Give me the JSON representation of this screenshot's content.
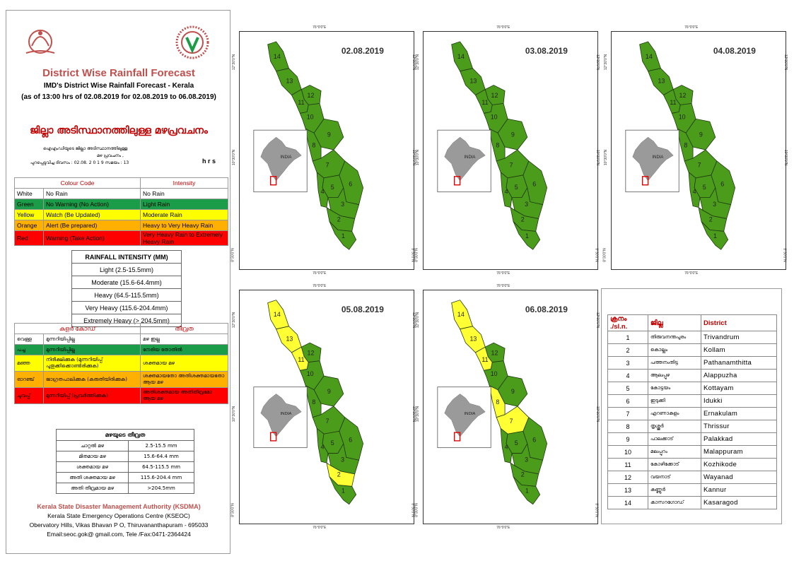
{
  "header": {
    "title": "District Wise Rainfall Forecast",
    "subtitle1": "IMD's District Wise Rainfall Forecast - Kerala",
    "subtitle2": "(as of 13:00 hrs of 02.08.2019  for 02.08.2019 to 06.08.2019)",
    "mal_title": "ജില്ലാ അടിസ്ഥാനത്തിലുള്ള മഴപ്രവചനം",
    "mal_line1": "ഐഎംഡിയുടെ        ജില്ലാ        അടിസ്ഥാനത്തിലുള്ള",
    "mal_line2": "മഴ പ്രവചനം       ,",
    "mal_line3": "പുറപ്പെടുവിച്ച        ദിവസം : 02.08.   2 0 1 9   സമയം : 13",
    "hrs": "h r s"
  },
  "colour_code": {
    "col1": "Colour Code",
    "col2": "Intensity",
    "rows": [
      {
        "color": "White",
        "meaning": "No Rain",
        "intensity": "No Rain",
        "cls": "r-white"
      },
      {
        "color": "Green",
        "meaning": "No Warning (No Action)",
        "intensity": "Light Rain",
        "cls": "r-green"
      },
      {
        "color": "Yellow",
        "meaning": "Watch (Be Updated)",
        "intensity": "Moderate Rain",
        "cls": "r-yellow"
      },
      {
        "color": "Orange",
        "meaning": "Alert (Be prepared)",
        "intensity": "Heavy to Very Heavy Rain",
        "cls": "r-orange"
      },
      {
        "color": "Red",
        "meaning": "Warning (Take Action)",
        "intensity": "Very Heavy Rain to Extremely Heavy Rain",
        "cls": "r-red"
      }
    ]
  },
  "rain_intensity": {
    "title": "RAINFALL INTENSITY (MM)",
    "rows": [
      "Light (2.5-15.5mm)",
      "Moderate (15.6-64.4mm)",
      "Heavy (64.5-115.5mm)",
      "Very Heavy (115.6-204.4mm)",
      "Extremely Heavy (> 204.5mm)"
    ]
  },
  "mal_colour_code": {
    "col1": "കളർ കോഡ്",
    "col2": "തീവ്രത",
    "rows": [
      {
        "color": "വെള്ള",
        "meaning": "മുന്നറിയിപ്പില്ല",
        "intensity": "മഴ ഇല്ല",
        "cls": "r-white"
      },
      {
        "color": "പച്ച",
        "meaning": "മുന്നറിയിപ്പില്ല",
        "intensity": "നേരിയ തോതിൽ",
        "cls": "r-green"
      },
      {
        "color": "മഞ്ഞ",
        "meaning": "നിരീക്ഷിക്കുക (മുന്നറിയിപ്പ് പുതുക്കിക്കൊണ്ടിരിക്കുക)",
        "intensity": "ശക്തമായ മഴ",
        "cls": "r-yellow"
      },
      {
        "color": "ഓറഞ്ച്",
        "meaning": "ജാഗ്രതപാലിക്കുക (കരുതിയിരിക്കുക)",
        "intensity": "ശക്തമായതോ അതിശക്തമായതോ ആയ മഴ",
        "cls": "r-orange"
      },
      {
        "color": "ചുവപ്പ്",
        "meaning": "മുന്നറിയിപ്പ് (പ്രവർത്തിക്കുക)",
        "intensity": "അതിശക്തമായ അതിതീവ്രമോ ആയ മഴ",
        "cls": "r-red"
      }
    ]
  },
  "mal_intensity": {
    "title": "മഴയുടെ തീവ്രത",
    "rows": [
      {
        "name": "ചാറ്റൽ മഴ",
        "range": "2.5-15.5 mm"
      },
      {
        "name": "മിതമായ മഴ",
        "range": "15.6-64.4 mm"
      },
      {
        "name": "ശക്തമായ മഴ",
        "range": "64.5-115.5 mm"
      },
      {
        "name": "അതി ശക്തമായ മഴ",
        "range": "115.6-204.4 mm"
      },
      {
        "name": "അതി തീവ്രമായ മഴ",
        "range": ">204.5mm"
      }
    ]
  },
  "footer": {
    "org": "Kerala State Disaster Management Authority (KSDMA)",
    "line1": "Kerala State Emergency Operations Centre (KSEOC)",
    "line2": "Obervatory Hills, Vikas Bhavan P O, Thiruvananthapuram - 695033",
    "line3": "Email:seoc.gok@ gmail.com, Tele /Fax:0471-2364424"
  },
  "map_labels": {
    "inset": "INDIA",
    "lon_top": "76°0'0\"E",
    "lon_bottom": "76°0'0\"E",
    "lat1": "12°30'0\"N",
    "lat2": "10°30'0\"N",
    "lat3": "8°30'0\"N"
  },
  "maps": [
    {
      "date": "02.08.2019",
      "yellow": []
    },
    {
      "date": "03.08.2019",
      "yellow": []
    },
    {
      "date": "04.08.2019",
      "yellow": []
    },
    {
      "date": "05.08.2019",
      "yellow": [
        2,
        11,
        13,
        14
      ]
    },
    {
      "date": "06.08.2019",
      "yellow": [
        7,
        8,
        11,
        13,
        14
      ]
    }
  ],
  "colors": {
    "green": "#4c9c1c",
    "yellow": "#ffff33",
    "title_red": "#c0504d"
  },
  "districts": {
    "headers": [
      "ക്രനം ./sl.n.",
      "ജില്ല",
      "District"
    ],
    "rows": [
      {
        "n": "1",
        "m": "തിരുവനന്തപുരം",
        "e": "Trivandrum"
      },
      {
        "n": "2",
        "m": "കൊല്ലം",
        "e": "Kollam"
      },
      {
        "n": "3",
        "m": "പത്തനംതിട്ട",
        "e": "Pathanamthitta"
      },
      {
        "n": "4",
        "m": "ആലപ്പുഴ",
        "e": "Alappuzha"
      },
      {
        "n": "5",
        "m": "കോട്ടയം",
        "e": "Kottayam"
      },
      {
        "n": "6",
        "m": "ഇടുക്കി",
        "e": "Idukki"
      },
      {
        "n": "7",
        "m": "എറണാകുളം",
        "e": "Ernakulam"
      },
      {
        "n": "8",
        "m": "തൃശ്ശൂർ",
        "e": "Thrissur"
      },
      {
        "n": "9",
        "m": "പാലക്കാട്",
        "e": "Palakkad"
      },
      {
        "n": "10",
        "m": "മലപ്പുറം",
        "e": "Malappuram"
      },
      {
        "n": "11",
        "m": "കോഴിക്കോട്",
        "e": "Kozhikode"
      },
      {
        "n": "12",
        "m": "വയനാട്",
        "e": "Wayanad"
      },
      {
        "n": "13",
        "m": "കണ്ണൂർ",
        "e": "Kannur"
      },
      {
        "n": "14",
        "m": "കാസറഗോഡ്",
        "e": "Kasaragod"
      }
    ]
  }
}
